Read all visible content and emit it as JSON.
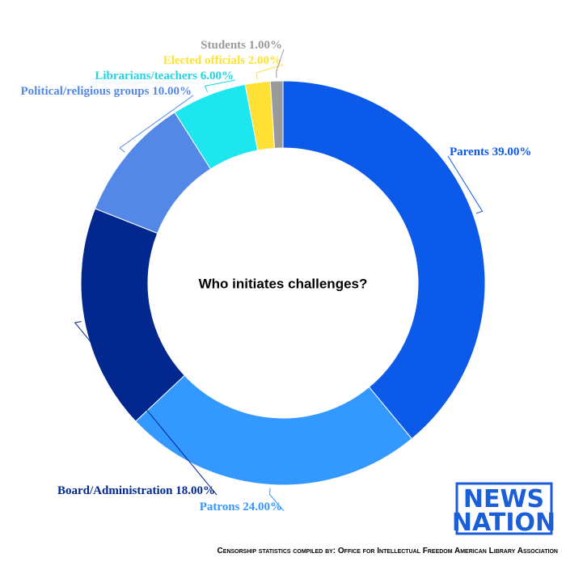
{
  "chart_data": {
    "type": "donut",
    "title": "Who initiates challenges?",
    "categories": [
      "Parents",
      "Patrons",
      "Board/Administration",
      "Political/religious groups",
      "Librarians/teachers",
      "Elected officials",
      "Students"
    ],
    "values": [
      39,
      24,
      18,
      10,
      6,
      2,
      1
    ],
    "value_labels": [
      "39.00%",
      "24.00%",
      "18.00%",
      "10.00%",
      "6.00%",
      "2.00%",
      "1.00%"
    ],
    "colors": [
      "#0b5aea",
      "#3399ff",
      "#02288f",
      "#5388e6",
      "#1ee6ee",
      "#ffe135",
      "#9a9a9a"
    ]
  },
  "footer": "Censorship statistics compiled by: Office for Intellectual Freedom American Library Association",
  "logo": [
    "NEWS",
    "NATION"
  ]
}
